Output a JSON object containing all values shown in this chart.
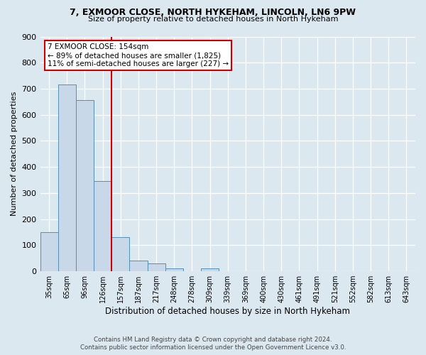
{
  "title1": "7, EXMOOR CLOSE, NORTH HYKEHAM, LINCOLN, LN6 9PW",
  "title2": "Size of property relative to detached houses in North Hykeham",
  "xlabel": "Distribution of detached houses by size in North Hykeham",
  "ylabel": "Number of detached properties",
  "bar_color": "#c8d8e8",
  "bar_edge_color": "#5090b8",
  "categories": [
    "35sqm",
    "65sqm",
    "96sqm",
    "126sqm",
    "157sqm",
    "187sqm",
    "217sqm",
    "248sqm",
    "278sqm",
    "309sqm",
    "339sqm",
    "369sqm",
    "400sqm",
    "430sqm",
    "461sqm",
    "491sqm",
    "521sqm",
    "552sqm",
    "582sqm",
    "613sqm",
    "643sqm"
  ],
  "values": [
    150,
    715,
    655,
    345,
    130,
    40,
    30,
    12,
    0,
    10,
    0,
    0,
    0,
    0,
    0,
    0,
    0,
    0,
    0,
    0,
    0
  ],
  "ylim": [
    0,
    900
  ],
  "yticks": [
    0,
    100,
    200,
    300,
    400,
    500,
    600,
    700,
    800,
    900
  ],
  "vline_pos": 3.5,
  "annotation_line1": "7 EXMOOR CLOSE: 154sqm",
  "annotation_line2": "← 89% of detached houses are smaller (1,825)",
  "annotation_line3": "11% of semi-detached houses are larger (227) →",
  "vline_color": "#cc0000",
  "annotation_box_color": "#ffffff",
  "annotation_box_edge": "#cc0000",
  "footer1": "Contains HM Land Registry data © Crown copyright and database right 2024.",
  "footer2": "Contains public sector information licensed under the Open Government Licence v3.0.",
  "bg_color": "#dce8f0",
  "grid_color": "#ffffff"
}
